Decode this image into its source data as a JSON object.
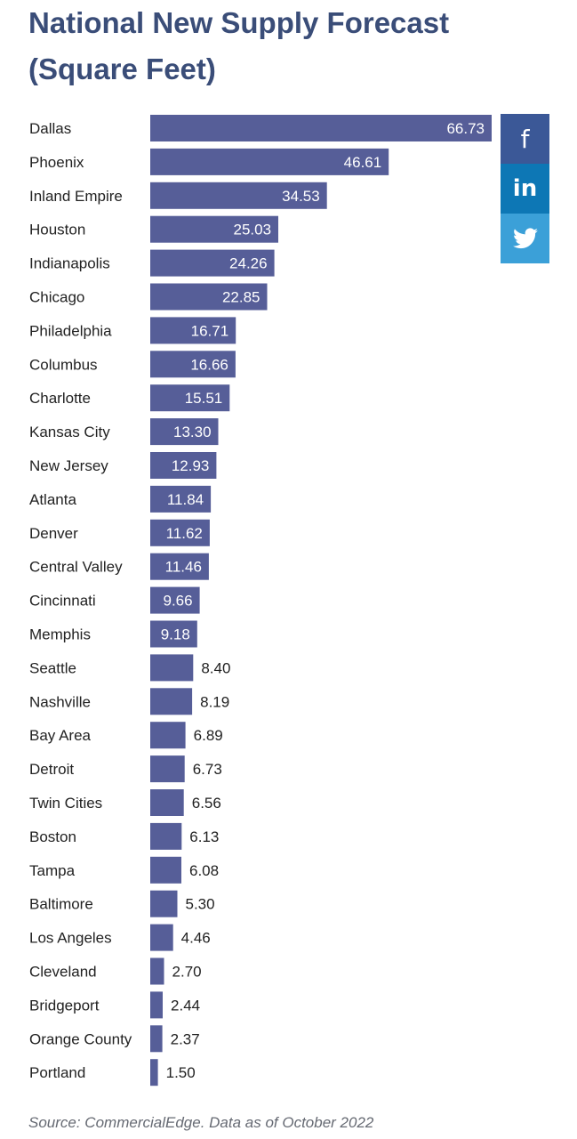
{
  "title": "National New Supply Forecast (Square Feet)",
  "source": "Source: CommercialEdge. Data as of October 2022",
  "share": {
    "facebook_label": "f",
    "linkedin_label": "in",
    "twitter_icon": "twitter-bird-icon"
  },
  "colors": {
    "bar": "#565e98",
    "title": "#3a4d78",
    "facebook": "#3b5897",
    "linkedin": "#0d77b5",
    "twitter": "#3ba0d8"
  },
  "chart_data": {
    "type": "bar",
    "orientation": "horizontal",
    "categories": [
      "Dallas",
      "Phoenix",
      "Inland Empire",
      "Houston",
      "Indianapolis",
      "Chicago",
      "Philadelphia",
      "Columbus",
      "Charlotte",
      "Kansas City",
      "New Jersey",
      "Atlanta",
      "Denver",
      "Central Valley",
      "Cincinnati",
      "Memphis",
      "Seattle",
      "Nashville",
      "Bay Area",
      "Detroit",
      "Twin Cities",
      "Boston",
      "Tampa",
      "Baltimore",
      "Los Angeles",
      "Cleveland",
      "Bridgeport",
      "Orange County",
      "Portland"
    ],
    "values": [
      66.73,
      46.61,
      34.53,
      25.03,
      24.26,
      22.85,
      16.71,
      16.66,
      15.51,
      13.3,
      12.93,
      11.84,
      11.62,
      11.46,
      9.66,
      9.18,
      8.4,
      8.19,
      6.89,
      6.73,
      6.56,
      6.13,
      6.08,
      5.3,
      4.46,
      2.7,
      2.44,
      2.37,
      1.5
    ],
    "value_labels": [
      "66.73",
      "46.61",
      "34.53",
      "25.03",
      "24.26",
      "22.85",
      "16.71",
      "16.66",
      "15.51",
      "13.30",
      "12.93",
      "11.84",
      "11.62",
      "11.46",
      "9.66",
      "9.18",
      "8.40",
      "8.19",
      "6.89",
      "6.73",
      "6.56",
      "6.13",
      "6.08",
      "5.30",
      "4.46",
      "2.70",
      "2.44",
      "2.37",
      "1.50"
    ],
    "xlim": [
      0,
      66.73
    ],
    "grid": false,
    "legend": "none"
  }
}
